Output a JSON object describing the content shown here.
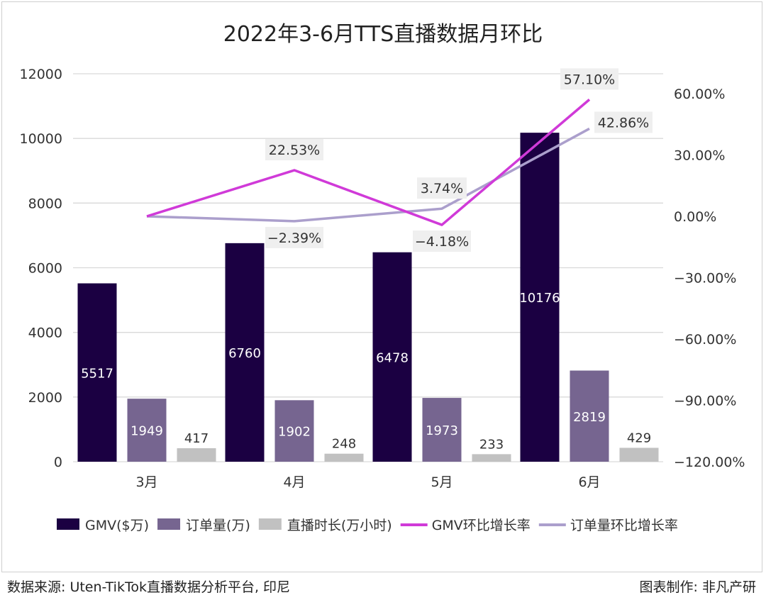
{
  "chart_data": {
    "type": "bar+line",
    "title": "2022年3-6月TTS直播数据月环比",
    "categories": [
      "3月",
      "4月",
      "5月",
      "6月"
    ],
    "y_left": {
      "range": [
        0,
        12000
      ],
      "ticks": [
        "0",
        "2000",
        "4000",
        "6000",
        "8000",
        "10000",
        "12000"
      ]
    },
    "y_right": {
      "range": [
        -120,
        60
      ],
      "ticks": [
        "-120.00%",
        "-90.00%",
        "-60.00%",
        "-30.00%",
        "0.00%",
        "30.00%",
        "60.00%"
      ]
    },
    "grid": true,
    "legend_position": "bottom",
    "bar_series": [
      {
        "name": "GMV($万)",
        "color": "#1b0042",
        "values": [
          5517,
          6760,
          6478,
          10176
        ],
        "labels": [
          "5517",
          "6760",
          "6478",
          "10176"
        ],
        "label_color": "#ffffff"
      },
      {
        "name": "订单量(万)",
        "color": "#766590",
        "values": [
          1949,
          1902,
          1973,
          2819
        ],
        "labels": [
          "1949",
          "1902",
          "1973",
          "2819"
        ],
        "label_color": "#ffffff"
      },
      {
        "name": "直播时长(万小时)",
        "color": "#c1c1c1",
        "values": [
          417,
          248,
          233,
          429
        ],
        "labels": [
          "417",
          "248",
          "233",
          "429"
        ],
        "label_color": "#333333"
      }
    ],
    "line_series": [
      {
        "name": "GMV环比增长率",
        "color": "#d03ad8",
        "values": [
          0,
          22.53,
          -4.18,
          57.1
        ],
        "labels": [
          "",
          "22.53%",
          "−4.18%",
          "57.10%"
        ]
      },
      {
        "name": "订单量环比增长率",
        "color": "#ab9fcc",
        "values": [
          0,
          -2.39,
          3.74,
          42.86
        ],
        "labels": [
          "",
          "−2.39%",
          "3.74%",
          "42.86%"
        ]
      }
    ]
  },
  "footer": {
    "source": "数据来源: Uten-TikTok直播数据分析平台, 印尼",
    "credit": "图表制作: 非凡产研"
  }
}
